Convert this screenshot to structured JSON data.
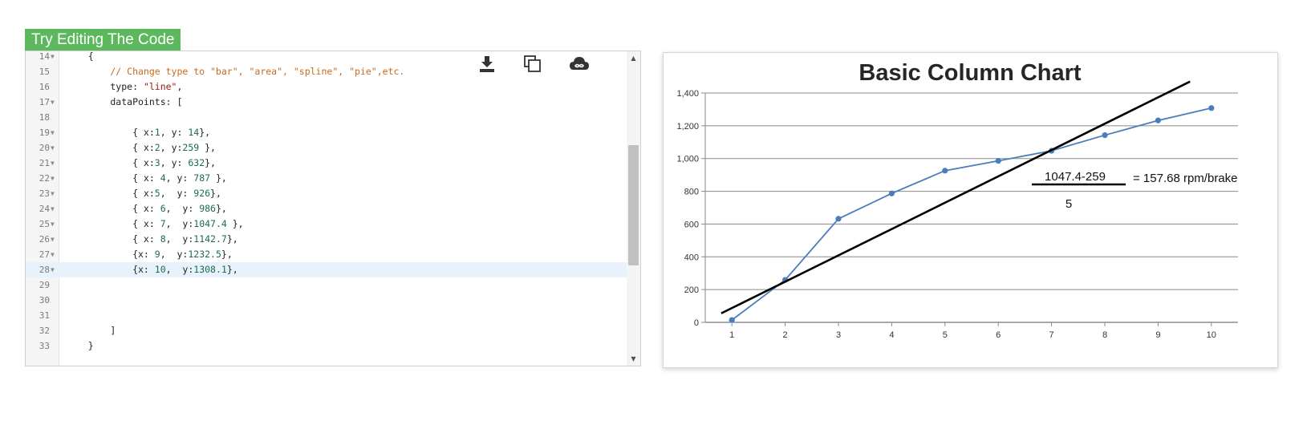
{
  "try_editing_label": "Try Editing The Code",
  "editor": {
    "toolbar": {
      "download_icon": "download-icon",
      "copy_icon": "copy-icon",
      "cloud_icon": "cloud-infinity-icon"
    },
    "lines": [
      {
        "num": "14",
        "fold": true,
        "active": false,
        "tokens": [
          {
            "t": "    {",
            "c": ""
          }
        ]
      },
      {
        "num": "15",
        "fold": false,
        "active": false,
        "tokens": [
          {
            "t": "        // Change type to \"bar\", \"area\", \"spline\", \"pie\",etc.",
            "c": "tok-comment"
          }
        ]
      },
      {
        "num": "16",
        "fold": false,
        "active": false,
        "tokens": [
          {
            "t": "        type: ",
            "c": ""
          },
          {
            "t": "\"line\"",
            "c": "tok-string"
          },
          {
            "t": ",",
            "c": ""
          }
        ]
      },
      {
        "num": "17",
        "fold": true,
        "active": false,
        "tokens": [
          {
            "t": "        dataPoints: [",
            "c": ""
          }
        ]
      },
      {
        "num": "18",
        "fold": false,
        "active": false,
        "tokens": []
      },
      {
        "num": "19",
        "fold": true,
        "active": false,
        "tokens": [
          {
            "t": "            { x:",
            "c": ""
          },
          {
            "t": "1",
            "c": "tok-number"
          },
          {
            "t": ", y: ",
            "c": ""
          },
          {
            "t": "14",
            "c": "tok-number"
          },
          {
            "t": "},",
            "c": ""
          }
        ]
      },
      {
        "num": "20",
        "fold": true,
        "active": false,
        "tokens": [
          {
            "t": "            { x:",
            "c": ""
          },
          {
            "t": "2",
            "c": "tok-number"
          },
          {
            "t": ", y:",
            "c": ""
          },
          {
            "t": "259",
            "c": "tok-number"
          },
          {
            "t": " },",
            "c": ""
          }
        ]
      },
      {
        "num": "21",
        "fold": true,
        "active": false,
        "tokens": [
          {
            "t": "            { x:",
            "c": ""
          },
          {
            "t": "3",
            "c": "tok-number"
          },
          {
            "t": ", y: ",
            "c": ""
          },
          {
            "t": "632",
            "c": "tok-number"
          },
          {
            "t": "},",
            "c": ""
          }
        ]
      },
      {
        "num": "22",
        "fold": true,
        "active": false,
        "tokens": [
          {
            "t": "            { x: ",
            "c": ""
          },
          {
            "t": "4",
            "c": "tok-number"
          },
          {
            "t": ", y: ",
            "c": ""
          },
          {
            "t": "787",
            "c": "tok-number"
          },
          {
            "t": " },",
            "c": ""
          }
        ]
      },
      {
        "num": "23",
        "fold": true,
        "active": false,
        "tokens": [
          {
            "t": "            { x:",
            "c": ""
          },
          {
            "t": "5",
            "c": "tok-number"
          },
          {
            "t": ",  y: ",
            "c": ""
          },
          {
            "t": "926",
            "c": "tok-number"
          },
          {
            "t": "},",
            "c": ""
          }
        ]
      },
      {
        "num": "24",
        "fold": true,
        "active": false,
        "tokens": [
          {
            "t": "            { x: ",
            "c": ""
          },
          {
            "t": "6",
            "c": "tok-number"
          },
          {
            "t": ",  y: ",
            "c": ""
          },
          {
            "t": "986",
            "c": "tok-number"
          },
          {
            "t": "},",
            "c": ""
          }
        ]
      },
      {
        "num": "25",
        "fold": true,
        "active": false,
        "tokens": [
          {
            "t": "            { x: ",
            "c": ""
          },
          {
            "t": "7",
            "c": "tok-number"
          },
          {
            "t": ",  y:",
            "c": ""
          },
          {
            "t": "1047.4",
            "c": "tok-number"
          },
          {
            "t": " },",
            "c": ""
          }
        ]
      },
      {
        "num": "26",
        "fold": true,
        "active": false,
        "tokens": [
          {
            "t": "            { x: ",
            "c": ""
          },
          {
            "t": "8",
            "c": "tok-number"
          },
          {
            "t": ",  y:",
            "c": ""
          },
          {
            "t": "1142.7",
            "c": "tok-number"
          },
          {
            "t": "},",
            "c": ""
          }
        ]
      },
      {
        "num": "27",
        "fold": true,
        "active": false,
        "tokens": [
          {
            "t": "            {x: ",
            "c": ""
          },
          {
            "t": "9",
            "c": "tok-number"
          },
          {
            "t": ",  y:",
            "c": ""
          },
          {
            "t": "1232.5",
            "c": "tok-number"
          },
          {
            "t": "},",
            "c": ""
          }
        ]
      },
      {
        "num": "28",
        "fold": true,
        "active": true,
        "tokens": [
          {
            "t": "            {x: ",
            "c": ""
          },
          {
            "t": "10",
            "c": "tok-number"
          },
          {
            "t": ",  y:",
            "c": ""
          },
          {
            "t": "1308.1",
            "c": "tok-number"
          },
          {
            "t": "},",
            "c": ""
          }
        ]
      },
      {
        "num": "29",
        "fold": false,
        "active": false,
        "tokens": []
      },
      {
        "num": "30",
        "fold": false,
        "active": false,
        "tokens": []
      },
      {
        "num": "31",
        "fold": false,
        "active": false,
        "tokens": []
      },
      {
        "num": "32",
        "fold": false,
        "active": false,
        "tokens": [
          {
            "t": "        ]",
            "c": ""
          }
        ]
      },
      {
        "num": "33",
        "fold": false,
        "active": false,
        "tokens": [
          {
            "t": "    }",
            "c": ""
          }
        ]
      }
    ]
  },
  "chart_data": {
    "type": "line",
    "title": "Basic Column Chart",
    "xlabel": "",
    "ylabel": "",
    "x": [
      1,
      2,
      3,
      4,
      5,
      6,
      7,
      8,
      9,
      10
    ],
    "series": [
      {
        "values": [
          14,
          259,
          632,
          787,
          926,
          986,
          1047.4,
          1142.7,
          1232.5,
          1308.1
        ],
        "color": "#4a7ebb"
      }
    ],
    "x_ticks": [
      1,
      2,
      3,
      4,
      5,
      6,
      7,
      8,
      9,
      10
    ],
    "y_ticks": [
      0,
      200,
      400,
      600,
      800,
      1000,
      1200,
      1400
    ],
    "y_tick_labels": [
      "0",
      "200",
      "400",
      "600",
      "800",
      "1,000",
      "1,200",
      "1,400"
    ],
    "ylim": [
      0,
      1400
    ],
    "xlim": [
      0.5,
      10.5
    ],
    "grid": true,
    "overlay_line": {
      "x": [
        0.8,
        9.6
      ],
      "y": [
        55,
        1470
      ],
      "color": "#000000"
    },
    "annotation": {
      "numerator": "1047.4-259",
      "denominator": "5",
      "result": "= 157.68 rpm/brake"
    }
  }
}
